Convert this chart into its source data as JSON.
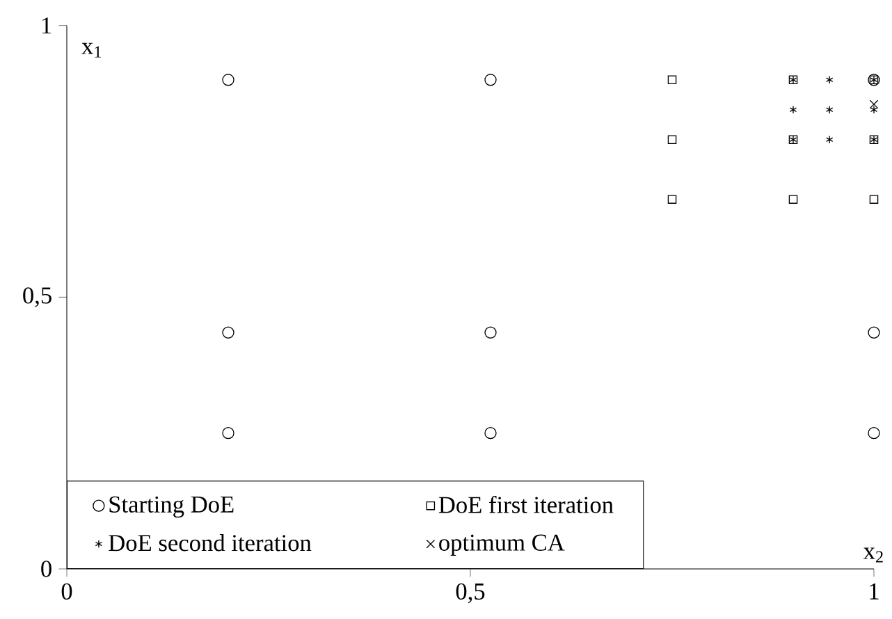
{
  "chart_data": {
    "type": "scatter",
    "xlabel": "x$_{2}$",
    "ylabel": "x$_{1}$",
    "xlim": [
      0,
      1
    ],
    "ylim": [
      0,
      1
    ],
    "xticks": [
      0,
      {
        "value": 0.5,
        "label": "0,5"
      },
      1
    ],
    "yticks": [
      0,
      {
        "value": 0.5,
        "label": "0,5"
      },
      1
    ],
    "grid": false,
    "legend": "bottom left",
    "series": [
      {
        "name": "Starting DoE",
        "color": "#000000",
        "marker": "circle",
        "x": [
          0.2,
          0.525,
          1,
          0.2,
          0.525,
          1,
          0.2,
          0.525,
          1
        ],
        "values": [
          0.9,
          0.9,
          0.9,
          0.435,
          0.435,
          0.435,
          0.25,
          0.25,
          0.25
        ]
      },
      {
        "name": "DoE first iteration",
        "color": "#000000",
        "marker": "square",
        "x": [
          0.75,
          0.9,
          1,
          0.75,
          0.9,
          1,
          0.75,
          0.9,
          1
        ],
        "values": [
          0.9,
          0.9,
          0.9,
          0.79,
          0.79,
          0.79,
          0.68,
          0.68,
          0.68
        ]
      },
      {
        "name": "DoE second iteration",
        "color": "#000000",
        "marker": "cross",
        "x": [
          0.9,
          0.945,
          1,
          0.9,
          0.945,
          1,
          0.9,
          0.945,
          1
        ],
        "values": [
          0.9,
          0.9,
          0.9,
          0.845,
          0.845,
          0.845,
          0.79,
          0.79,
          0.79
        ]
      },
      {
        "name": "optimum CA",
        "color": "#000000",
        "x": [
          1
        ],
        "values": [
          0.855
        ]
      }
    ]
  }
}
